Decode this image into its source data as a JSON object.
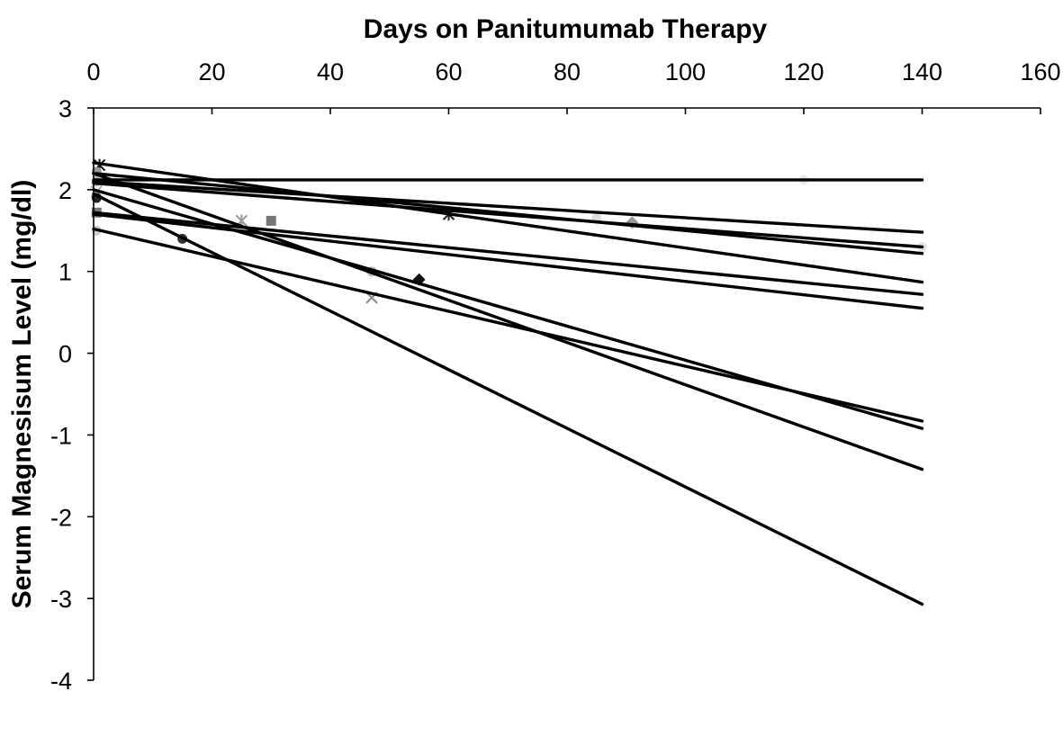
{
  "chart_data": {
    "type": "scatter",
    "xlabel": "Days on Panitumumab Therapy",
    "ylabel": "Serum Magnesisum Level (mg/dl)",
    "xlim": [
      0,
      160
    ],
    "ylim": [
      -4,
      3
    ],
    "x_ticks": [
      "0",
      "20",
      "40",
      "60",
      "80",
      "100",
      "120",
      "140",
      "160"
    ],
    "y_ticks": [
      "3",
      "2",
      "1",
      "0",
      "-1",
      "-2",
      "-3",
      "-4"
    ],
    "x_axis_position": "top",
    "grid": false,
    "legend": "none",
    "trendlines": [
      {
        "x": [
          0,
          140
        ],
        "y": [
          2.12,
          2.12
        ]
      },
      {
        "x": [
          0,
          140
        ],
        "y": [
          2.1,
          1.48
        ]
      },
      {
        "x": [
          0,
          140
        ],
        "y": [
          2.08,
          1.3
        ]
      },
      {
        "x": [
          0,
          140
        ],
        "y": [
          2.2,
          1.22
        ]
      },
      {
        "x": [
          0,
          140
        ],
        "y": [
          2.33,
          0.87
        ]
      },
      {
        "x": [
          0,
          140
        ],
        "y": [
          1.72,
          0.72
        ]
      },
      {
        "x": [
          0,
          140
        ],
        "y": [
          1.7,
          0.55
        ]
      },
      {
        "x": [
          0,
          140
        ],
        "y": [
          1.52,
          -0.83
        ]
      },
      {
        "x": [
          0,
          140
        ],
        "y": [
          2.0,
          -0.92
        ]
      },
      {
        "x": [
          0,
          140
        ],
        "y": [
          2.2,
          -1.42
        ]
      },
      {
        "x": [
          0,
          140
        ],
        "y": [
          1.95,
          -3.07
        ]
      }
    ],
    "points": [
      {
        "x": 1,
        "y": 2.3,
        "marker": "asterisk",
        "color": "#111111"
      },
      {
        "x": 0.5,
        "y": 2.22,
        "marker": "circle",
        "color": "#9a9a9a"
      },
      {
        "x": 0.5,
        "y": 2.1,
        "marker": "circle",
        "color": "#b5b5b5"
      },
      {
        "x": 0.5,
        "y": 1.98,
        "marker": "x",
        "color": "#aaaaaa"
      },
      {
        "x": 0.5,
        "y": 1.9,
        "marker": "circle",
        "color": "#222222"
      },
      {
        "x": 0.5,
        "y": 1.72,
        "marker": "square",
        "color": "#777777"
      },
      {
        "x": 0.5,
        "y": 1.5,
        "marker": "circle",
        "color": "#cfcfcf"
      },
      {
        "x": 15,
        "y": 1.4,
        "marker": "circle",
        "color": "#333333"
      },
      {
        "x": 25,
        "y": 1.62,
        "marker": "asterisk",
        "color": "#999999"
      },
      {
        "x": 30,
        "y": 1.62,
        "marker": "square",
        "color": "#777777"
      },
      {
        "x": 47,
        "y": 1.0,
        "marker": "circle",
        "color": "#bbbbbb"
      },
      {
        "x": 47,
        "y": 0.68,
        "marker": "x",
        "color": "#888888"
      },
      {
        "x": 55,
        "y": 0.9,
        "marker": "diamond",
        "color": "#111111"
      },
      {
        "x": 60,
        "y": 1.7,
        "marker": "asterisk",
        "color": "#222222"
      },
      {
        "x": 85,
        "y": 1.65,
        "marker": "circle",
        "color": "#dddddd"
      },
      {
        "x": 91,
        "y": 1.6,
        "marker": "diamond",
        "color": "#999999"
      },
      {
        "x": 120,
        "y": 2.12,
        "marker": "circle",
        "color": "#e8e8e8"
      },
      {
        "x": 140,
        "y": 1.3,
        "marker": "circle",
        "color": "#e3e3e3"
      }
    ]
  }
}
